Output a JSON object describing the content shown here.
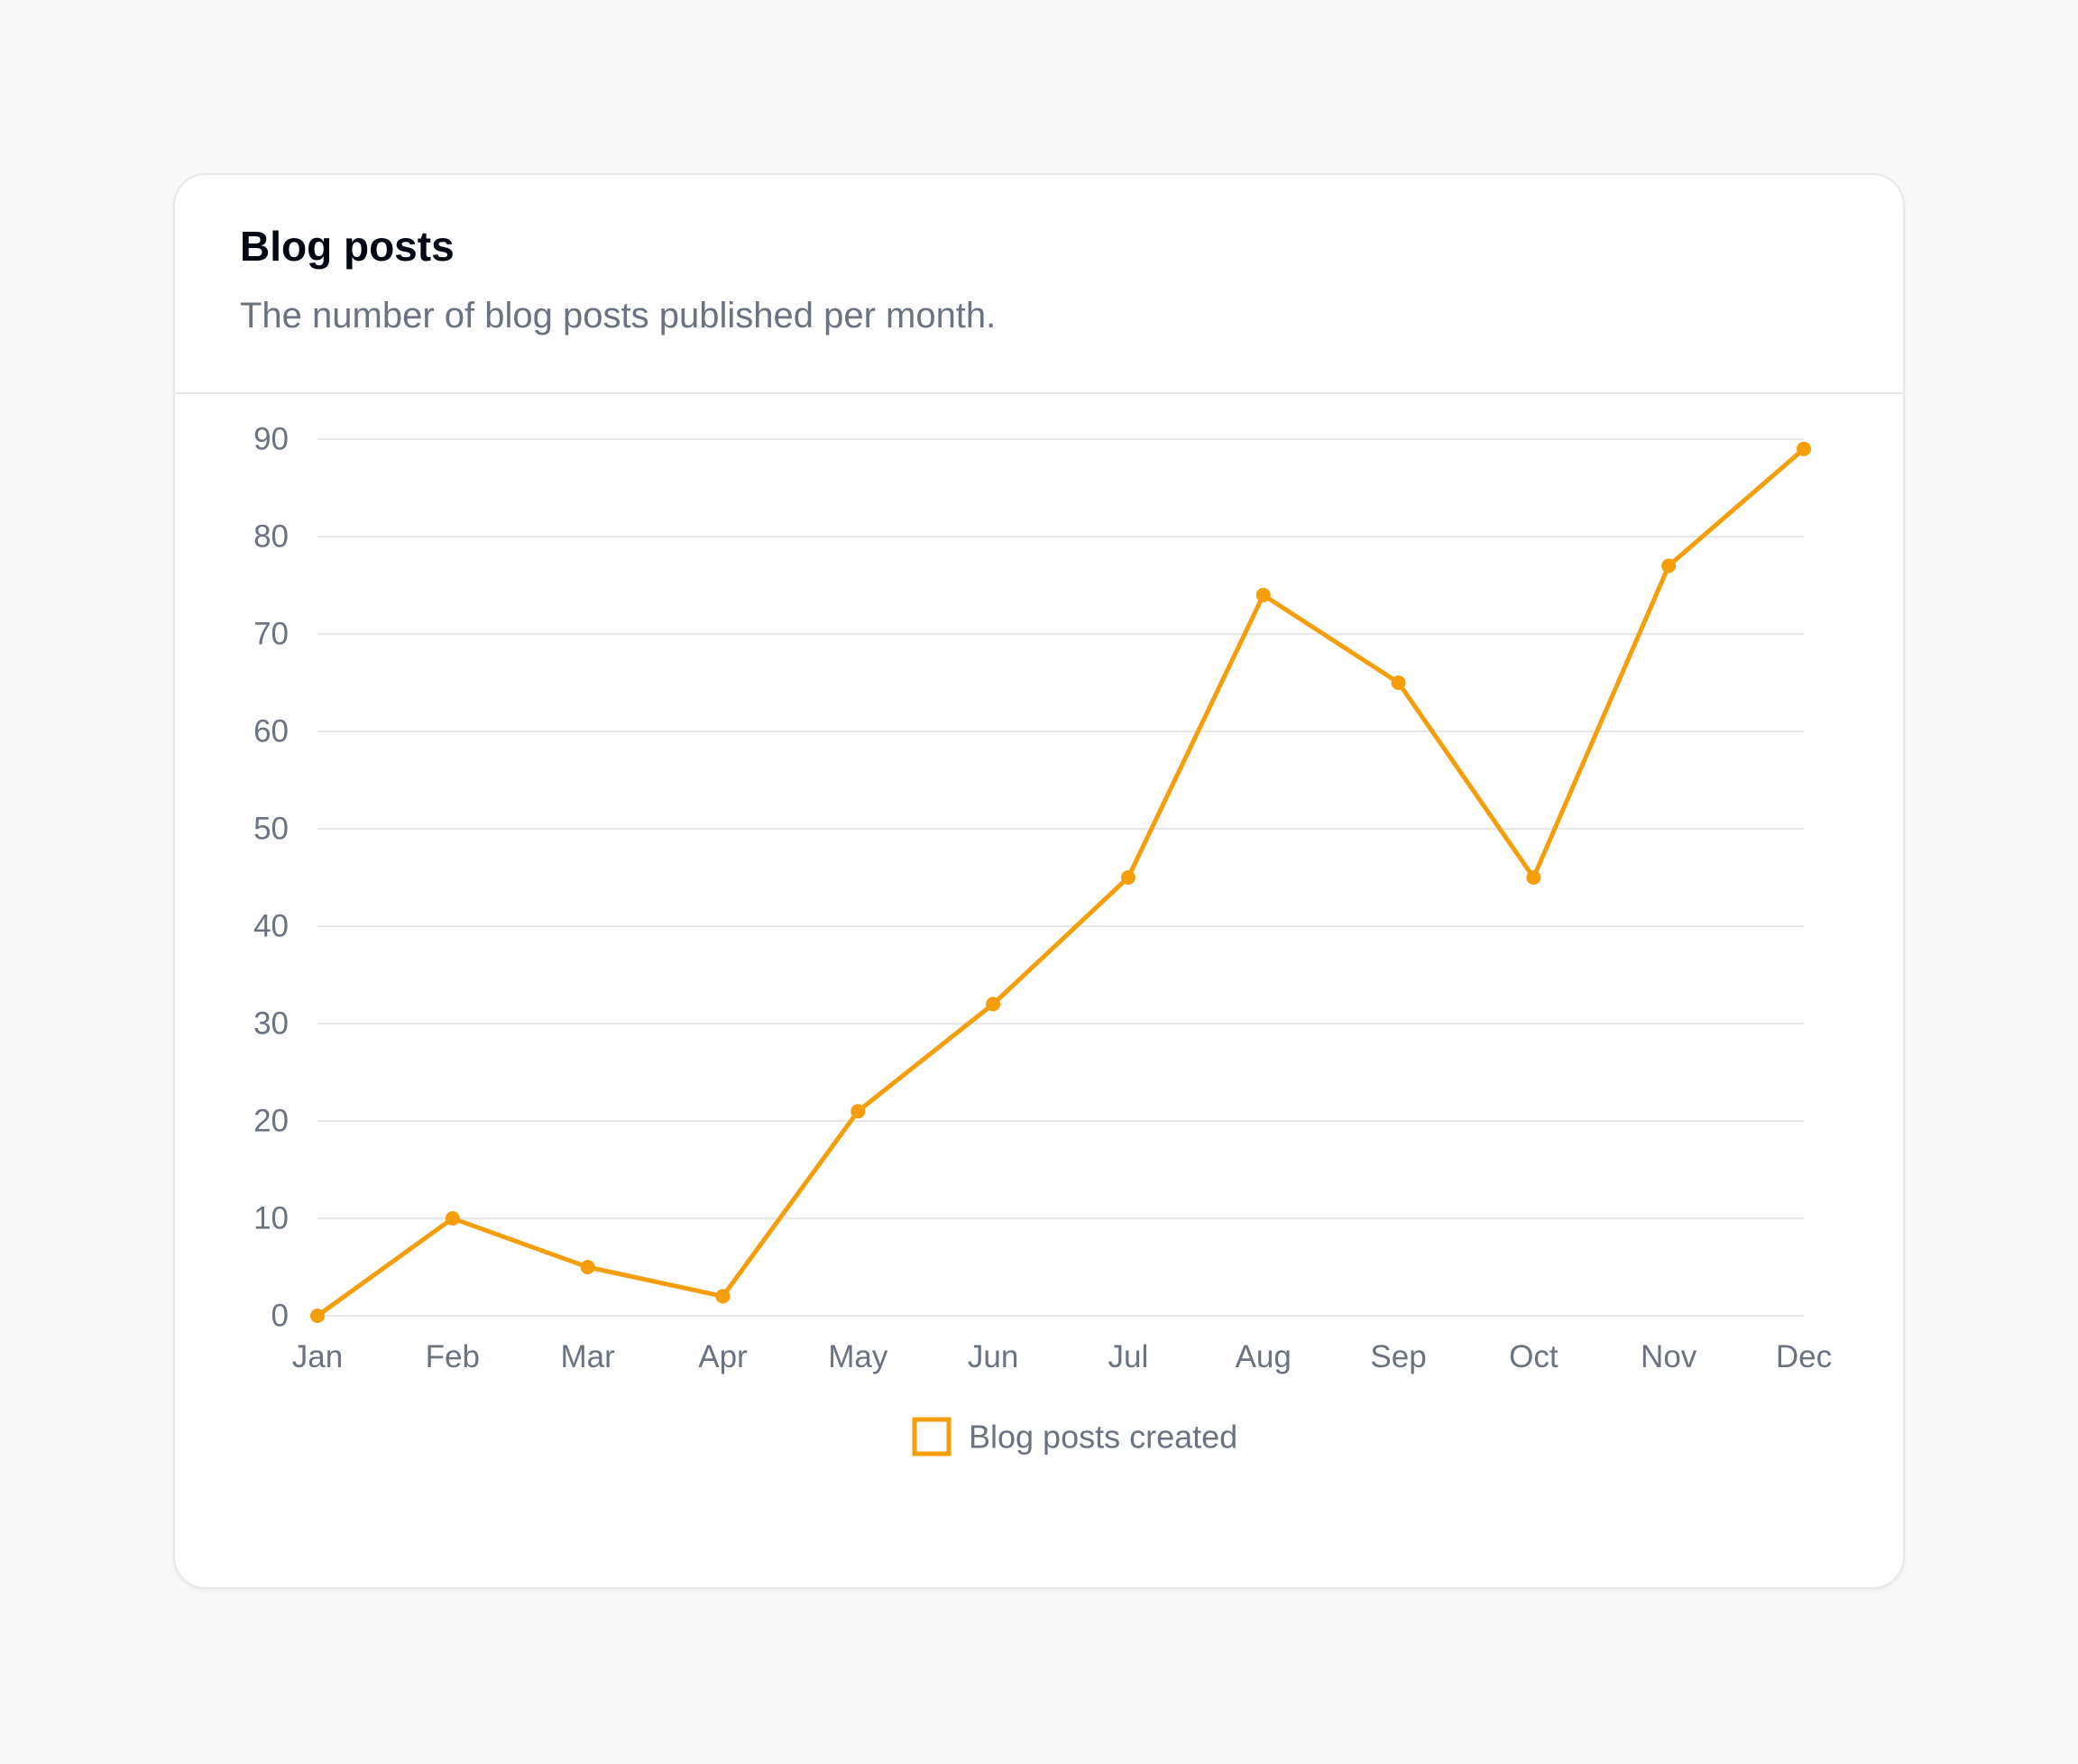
{
  "card": {
    "title": "Blog posts",
    "subtitle": "The number of blog posts published per month."
  },
  "chart_data": {
    "type": "line",
    "title": "Blog posts",
    "subtitle": "The number of blog posts published per month.",
    "categories": [
      "Jan",
      "Feb",
      "Mar",
      "Apr",
      "May",
      "Jun",
      "Jul",
      "Aug",
      "Sep",
      "Oct",
      "Nov",
      "Dec"
    ],
    "series": [
      {
        "name": "Blog posts created",
        "values": [
          0,
          10,
          5,
          2,
          21,
          32,
          45,
          74,
          65,
          45,
          77,
          89
        ],
        "color": "#f59e0b"
      }
    ],
    "ylim": [
      0,
      90
    ],
    "yticks": [
      0,
      10,
      20,
      30,
      40,
      50,
      60,
      70,
      80,
      90
    ],
    "xlabel": "",
    "ylabel": "",
    "grid": true,
    "legend_position": "bottom-center"
  }
}
